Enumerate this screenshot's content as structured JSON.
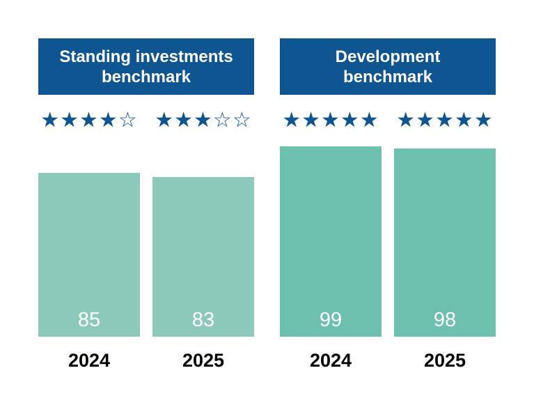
{
  "chart_data": {
    "type": "bar",
    "ylim": [
      0,
      100
    ],
    "grid": false,
    "legend": "none",
    "groups": [
      {
        "title": "Standing investments benchmark",
        "title_lines": [
          "Standing investments",
          "benchmark"
        ],
        "bar_color": "#8cc9bb",
        "bars": [
          {
            "year": "2024",
            "value": 85,
            "stars_filled": 4,
            "stars_total": 5
          },
          {
            "year": "2025",
            "value": 83,
            "stars_filled": 3,
            "stars_total": 5
          }
        ]
      },
      {
        "title": "Development benchmark",
        "title_lines": [
          "Development",
          "benchmark"
        ],
        "bar_color": "#6dbfae",
        "bars": [
          {
            "year": "2024",
            "value": 99,
            "stars_filled": 5,
            "stars_total": 5
          },
          {
            "year": "2025",
            "value": 98,
            "stars_filled": 5,
            "stars_total": 5
          }
        ]
      }
    ],
    "colors": {
      "header_bg": "#0e5591",
      "header_text": "#ffffff",
      "star": "#0e5591",
      "value_text": "#ffffff",
      "year_text": "#000000",
      "background": "#ffffff"
    }
  }
}
